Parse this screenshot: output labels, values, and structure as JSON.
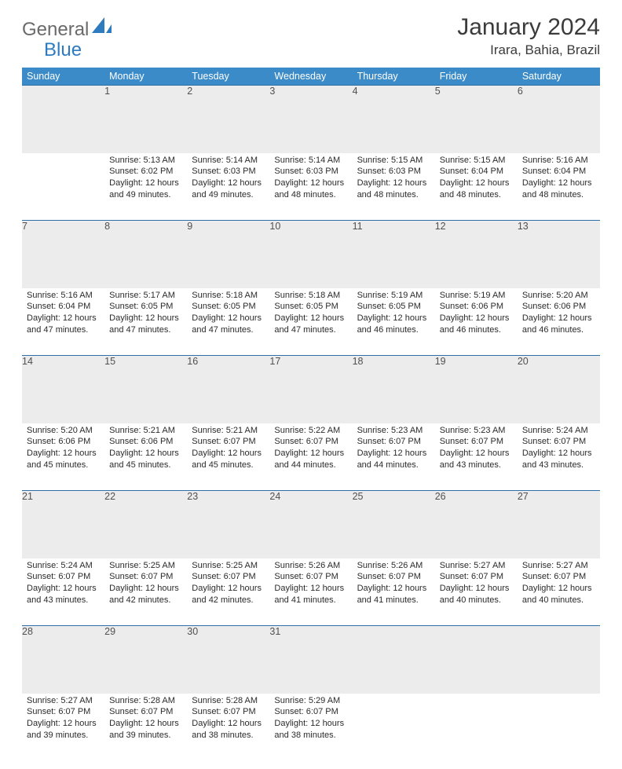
{
  "logo": {
    "text1": "General",
    "text2": "Blue"
  },
  "title": "January 2024",
  "location": "Irara, Bahia, Brazil",
  "colors": {
    "header_bg": "#3b8bc8",
    "header_text": "#ffffff",
    "daynum_bg": "#ececec",
    "rule": "#2f6fa8",
    "body_text": "#2b2b2b",
    "logo_gray": "#6a6a6a",
    "logo_blue": "#2f7bbf"
  },
  "weekdays": [
    "Sunday",
    "Monday",
    "Tuesday",
    "Wednesday",
    "Thursday",
    "Friday",
    "Saturday"
  ],
  "first_weekday_index": 1,
  "days": [
    {
      "n": 1,
      "sr": "5:13 AM",
      "ss": "6:02 PM",
      "dl": "12 hours and 49 minutes."
    },
    {
      "n": 2,
      "sr": "5:14 AM",
      "ss": "6:03 PM",
      "dl": "12 hours and 49 minutes."
    },
    {
      "n": 3,
      "sr": "5:14 AM",
      "ss": "6:03 PM",
      "dl": "12 hours and 48 minutes."
    },
    {
      "n": 4,
      "sr": "5:15 AM",
      "ss": "6:03 PM",
      "dl": "12 hours and 48 minutes."
    },
    {
      "n": 5,
      "sr": "5:15 AM",
      "ss": "6:04 PM",
      "dl": "12 hours and 48 minutes."
    },
    {
      "n": 6,
      "sr": "5:16 AM",
      "ss": "6:04 PM",
      "dl": "12 hours and 48 minutes."
    },
    {
      "n": 7,
      "sr": "5:16 AM",
      "ss": "6:04 PM",
      "dl": "12 hours and 47 minutes."
    },
    {
      "n": 8,
      "sr": "5:17 AM",
      "ss": "6:05 PM",
      "dl": "12 hours and 47 minutes."
    },
    {
      "n": 9,
      "sr": "5:18 AM",
      "ss": "6:05 PM",
      "dl": "12 hours and 47 minutes."
    },
    {
      "n": 10,
      "sr": "5:18 AM",
      "ss": "6:05 PM",
      "dl": "12 hours and 47 minutes."
    },
    {
      "n": 11,
      "sr": "5:19 AM",
      "ss": "6:05 PM",
      "dl": "12 hours and 46 minutes."
    },
    {
      "n": 12,
      "sr": "5:19 AM",
      "ss": "6:06 PM",
      "dl": "12 hours and 46 minutes."
    },
    {
      "n": 13,
      "sr": "5:20 AM",
      "ss": "6:06 PM",
      "dl": "12 hours and 46 minutes."
    },
    {
      "n": 14,
      "sr": "5:20 AM",
      "ss": "6:06 PM",
      "dl": "12 hours and 45 minutes."
    },
    {
      "n": 15,
      "sr": "5:21 AM",
      "ss": "6:06 PM",
      "dl": "12 hours and 45 minutes."
    },
    {
      "n": 16,
      "sr": "5:21 AM",
      "ss": "6:07 PM",
      "dl": "12 hours and 45 minutes."
    },
    {
      "n": 17,
      "sr": "5:22 AM",
      "ss": "6:07 PM",
      "dl": "12 hours and 44 minutes."
    },
    {
      "n": 18,
      "sr": "5:23 AM",
      "ss": "6:07 PM",
      "dl": "12 hours and 44 minutes."
    },
    {
      "n": 19,
      "sr": "5:23 AM",
      "ss": "6:07 PM",
      "dl": "12 hours and 43 minutes."
    },
    {
      "n": 20,
      "sr": "5:24 AM",
      "ss": "6:07 PM",
      "dl": "12 hours and 43 minutes."
    },
    {
      "n": 21,
      "sr": "5:24 AM",
      "ss": "6:07 PM",
      "dl": "12 hours and 43 minutes."
    },
    {
      "n": 22,
      "sr": "5:25 AM",
      "ss": "6:07 PM",
      "dl": "12 hours and 42 minutes."
    },
    {
      "n": 23,
      "sr": "5:25 AM",
      "ss": "6:07 PM",
      "dl": "12 hours and 42 minutes."
    },
    {
      "n": 24,
      "sr": "5:26 AM",
      "ss": "6:07 PM",
      "dl": "12 hours and 41 minutes."
    },
    {
      "n": 25,
      "sr": "5:26 AM",
      "ss": "6:07 PM",
      "dl": "12 hours and 41 minutes."
    },
    {
      "n": 26,
      "sr": "5:27 AM",
      "ss": "6:07 PM",
      "dl": "12 hours and 40 minutes."
    },
    {
      "n": 27,
      "sr": "5:27 AM",
      "ss": "6:07 PM",
      "dl": "12 hours and 40 minutes."
    },
    {
      "n": 28,
      "sr": "5:27 AM",
      "ss": "6:07 PM",
      "dl": "12 hours and 39 minutes."
    },
    {
      "n": 29,
      "sr": "5:28 AM",
      "ss": "6:07 PM",
      "dl": "12 hours and 39 minutes."
    },
    {
      "n": 30,
      "sr": "5:28 AM",
      "ss": "6:07 PM",
      "dl": "12 hours and 38 minutes."
    },
    {
      "n": 31,
      "sr": "5:29 AM",
      "ss": "6:07 PM",
      "dl": "12 hours and 38 minutes."
    }
  ],
  "labels": {
    "sunrise": "Sunrise:",
    "sunset": "Sunset:",
    "daylight": "Daylight:"
  }
}
